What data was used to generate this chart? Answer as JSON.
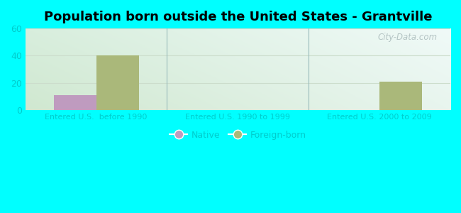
{
  "title": "Population born outside the United States - Grantville",
  "title_fontsize": 13,
  "background_color": "#00FFFF",
  "categories": [
    "Entered U.S.  before 1990",
    "Entered U.S. 1990 to 1999",
    "Entered U.S. 2000 to 2009"
  ],
  "native_values": [
    11,
    0,
    0
  ],
  "foreign_values": [
    40,
    0,
    21
  ],
  "native_color": "#bf9bbf",
  "foreign_color": "#aab87a",
  "ylim": [
    0,
    60
  ],
  "yticks": [
    0,
    20,
    40,
    60
  ],
  "bar_width": 0.3,
  "watermark": "City-Data.com",
  "tick_color": "#00DDDD",
  "label_color": "#00CCCC",
  "ytick_fontsize": 9,
  "xtick_fontsize": 8,
  "legend_fontsize": 9,
  "grid_color": "#ccddcc",
  "separator_color": "#99bbbb"
}
